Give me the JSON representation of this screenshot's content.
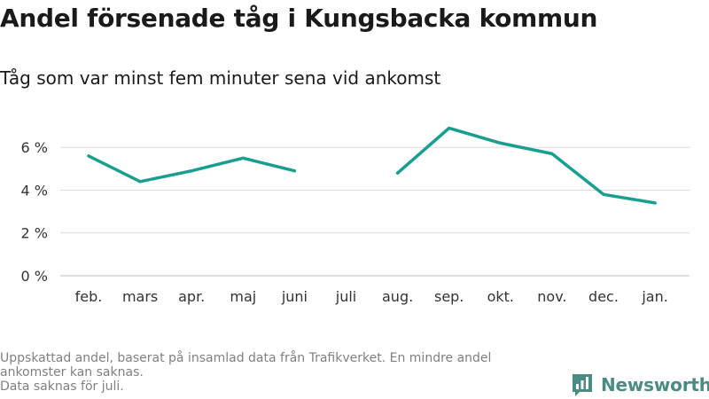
{
  "title": "Andel försenade tåg i Kungsbacka kommun",
  "subtitle": "Tåg som var minst fem minuter sena vid ankomst",
  "caption": {
    "line1": "Uppskattad andel, baserat på insamlad data från Trafikverket. En mindre andel ankomster kan saknas.",
    "line2": "Data saknas för juli."
  },
  "brand": {
    "name": "Newsworthy",
    "icon": "newsworthy-logo-icon",
    "color": "#4a8c83"
  },
  "chart_data": {
    "type": "line",
    "title": "Andel försenade tåg i Kungsbacka kommun",
    "subtitle": "Tåg som var minst fem minuter sena vid ankomst",
    "xlabel": "",
    "ylabel": "",
    "categories": [
      "feb.",
      "mars",
      "apr.",
      "maj",
      "juni",
      "juli",
      "aug.",
      "sep.",
      "okt.",
      "nov.",
      "dec.",
      "jan."
    ],
    "series": [
      {
        "values": [
          5.6,
          4.4,
          4.9,
          5.5,
          4.9,
          null,
          4.8,
          6.9,
          6.2,
          5.7,
          3.8,
          3.4
        ],
        "color": "#1a9e90"
      }
    ],
    "yticks": [
      0,
      2,
      4,
      6
    ],
    "ytick_labels": [
      "0 %",
      "2 %",
      "4 %",
      "6 %"
    ],
    "ylim": [
      0,
      7.5
    ],
    "grid": true,
    "legend": "none"
  }
}
